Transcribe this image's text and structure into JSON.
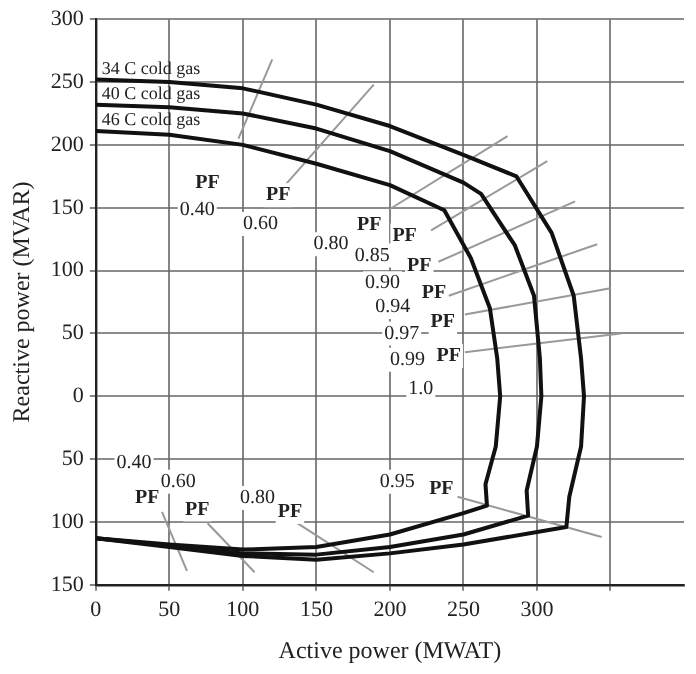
{
  "chart_data": {
    "type": "line",
    "xlabel": "Active power (MWAT)",
    "ylabel": "Reactive power (MVAR)",
    "xlim": [
      0,
      400
    ],
    "xticks": [
      0,
      50,
      100,
      150,
      200,
      250,
      300,
      {
        "value": 350,
        "label": null
      }
    ],
    "ylim": [
      -150,
      300
    ],
    "yticks": [
      300,
      250,
      200,
      150,
      100,
      50,
      0,
      {
        "value": -50,
        "label": "50"
      },
      {
        "value": -100,
        "label": "100"
      },
      {
        "value": -150,
        "label": "150"
      }
    ],
    "grid": true,
    "legend": false,
    "marker": "none",
    "line_style": "solid",
    "series": [
      {
        "name": "34 C cold gas",
        "color": "#111111",
        "x": [
          0,
          50,
          100,
          150,
          200,
          250,
          286,
          310,
          325,
          330,
          332,
          330,
          322,
          320,
          250,
          200,
          150,
          100,
          50,
          0
        ],
        "values": [
          252,
          250,
          245,
          232,
          215,
          192,
          175,
          130,
          80,
          30,
          0,
          -40,
          -80,
          -104,
          -118,
          -125,
          -130,
          -127,
          -120,
          -113
        ]
      },
      {
        "name": "40 C cold gas",
        "color": "#111111",
        "x": [
          0,
          50,
          100,
          150,
          200,
          250,
          262,
          285,
          298,
          302,
          303,
          300,
          293,
          294,
          250,
          200,
          150,
          100,
          50,
          0
        ],
        "values": [
          232,
          230,
          225,
          213,
          195,
          170,
          161,
          120,
          80,
          30,
          0,
          -40,
          -75,
          -95,
          -110,
          -120,
          -126,
          -125,
          -119,
          -113
        ]
      },
      {
        "name": "46 C cold gas",
        "color": "#111111",
        "x": [
          0,
          50,
          100,
          150,
          200,
          237,
          255,
          268,
          273,
          275,
          272,
          265,
          266,
          250,
          200,
          150,
          100,
          50,
          0
        ],
        "values": [
          211,
          208,
          200,
          185,
          168,
          148,
          110,
          70,
          30,
          0,
          -40,
          -70,
          -87,
          -93,
          -110,
          -120,
          -122,
          -118,
          -113
        ]
      },
      {
        "color": "#999999",
        "x": [
          97,
          120
        ],
        "values": [
          205,
          268
        ]
      },
      {
        "color": "#999999",
        "x": [
          128,
          189
        ],
        "values": [
          167,
          248
        ]
      },
      {
        "color": "#999999",
        "x": [
          200,
          280
        ],
        "values": [
          149,
          207
        ]
      },
      {
        "color": "#999999",
        "x": [
          228,
          307
        ],
        "values": [
          132,
          187
        ]
      },
      {
        "color": "#999999",
        "x": [
          233,
          326
        ],
        "values": [
          107,
          155
        ]
      },
      {
        "color": "#999999",
        "x": [
          240,
          341
        ],
        "values": [
          80,
          121
        ]
      },
      {
        "color": "#999999",
        "x": [
          251,
          350
        ],
        "values": [
          65,
          86
        ]
      },
      {
        "color": "#999999",
        "x": [
          251,
          357
        ],
        "values": [
          35,
          50
        ]
      },
      {
        "color": "#999999",
        "x": [
          246,
          344
        ],
        "values": [
          -80,
          -112
        ]
      },
      {
        "color": "#999999",
        "x": [
          137,
          189
        ],
        "values": [
          -101,
          -140
        ]
      },
      {
        "color": "#999999",
        "x": [
          76,
          108
        ],
        "values": [
          -101,
          -140
        ]
      },
      {
        "color": "#999999",
        "x": [
          45,
          62
        ],
        "values": [
          -92,
          -139
        ]
      }
    ],
    "annotations": [
      "PF",
      "0.40",
      "PF",
      "0.60",
      "PF",
      "0.80",
      "PF",
      "0.85",
      "PF",
      "0.90",
      "PF",
      "0.94",
      "PF",
      "0.97",
      "PF",
      "0.99",
      "1.0",
      "0.40",
      "PF",
      "0.60",
      "PF",
      "0.80",
      "PF",
      "0.95",
      "PF"
    ]
  }
}
